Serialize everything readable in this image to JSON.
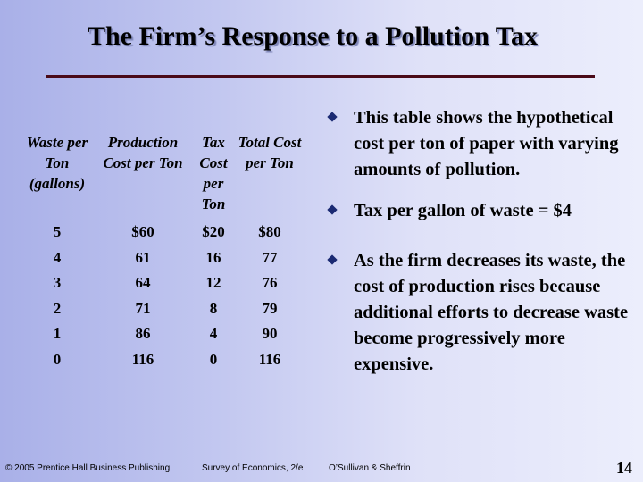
{
  "title": "The Firm’s Response to a Pollution Tax",
  "table": {
    "headers": [
      "Waste per Ton (gallons)",
      "Production Cost per Ton",
      "Tax Cost per Ton",
      "Total Cost per Ton"
    ],
    "rows": [
      [
        "5",
        "$60",
        "$20",
        "$80"
      ],
      [
        "4",
        "61",
        "16",
        "77"
      ],
      [
        "3",
        "64",
        "12",
        "76"
      ],
      [
        "2",
        "71",
        "8",
        "79"
      ],
      [
        "1",
        "86",
        "4",
        "90"
      ],
      [
        "0",
        "116",
        "0",
        "116"
      ]
    ]
  },
  "bullets": [
    "This table shows the hypothetical cost per ton of paper with varying amounts of pollution.",
    "Tax per gallon of waste = $4",
    "As the firm decreases its waste, the cost of production rises because additional efforts to decrease waste become progressively more expensive."
  ],
  "footer": {
    "copyright": "© 2005 Prentice Hall Business Publishing",
    "book": "Survey of Economics, 2/e",
    "authors": "O’Sullivan & Sheffrin",
    "page": "14"
  },
  "colors": {
    "title_rule": "#4a0a18",
    "bullet": "#1b2a73"
  }
}
